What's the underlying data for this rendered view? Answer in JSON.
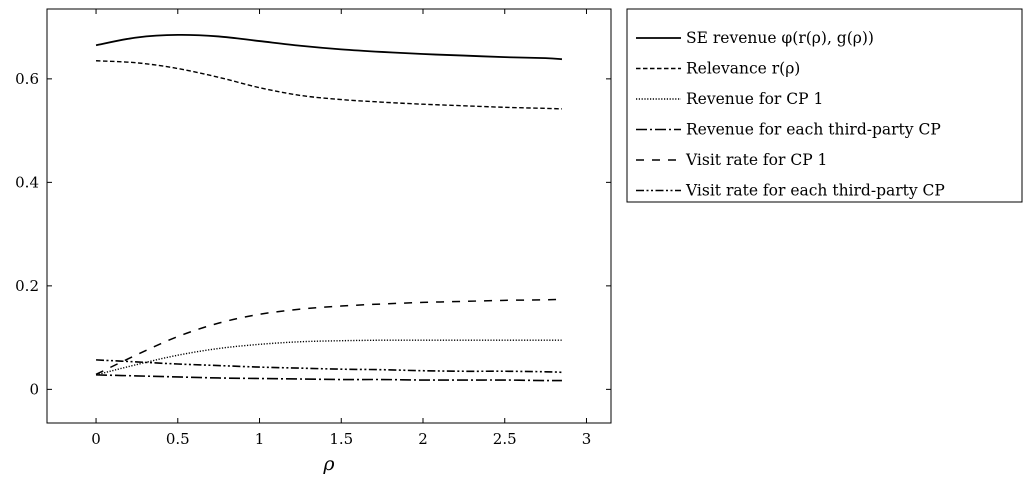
{
  "chart_data": {
    "type": "line",
    "xlabel": "ρ",
    "ylabel": "",
    "title": "",
    "xlim": [
      -0.3,
      3.15
    ],
    "ylim": [
      -0.065,
      0.735
    ],
    "xticks": [
      0,
      0.5,
      1,
      1.5,
      2,
      2.5,
      3
    ],
    "xtick_labels": [
      "0",
      "0.5",
      "1",
      "1.5",
      "2",
      "2.5",
      "3"
    ],
    "yticks": [
      0,
      0.2,
      0.4,
      0.6
    ],
    "ytick_labels": [
      "0",
      "0.2",
      "0.4",
      "0.6"
    ],
    "grid": false,
    "legend_position": "outside-right-top",
    "series": [
      {
        "name": "SE revenue φ(r(ρ), g(ρ))",
        "style": "solid",
        "x": [
          0,
          0.25,
          0.5,
          0.75,
          1,
          1.25,
          1.5,
          1.75,
          2,
          2.25,
          2.5,
          2.75,
          2.85
        ],
        "y": [
          0.665,
          0.68,
          0.685,
          0.682,
          0.673,
          0.664,
          0.657,
          0.652,
          0.648,
          0.645,
          0.642,
          0.64,
          0.638
        ]
      },
      {
        "name": "Relevance r(ρ)",
        "style": "dashed",
        "x": [
          0,
          0.25,
          0.5,
          0.75,
          1,
          1.25,
          1.5,
          1.75,
          2,
          2.25,
          2.5,
          2.75,
          2.85
        ],
        "y": [
          0.635,
          0.631,
          0.62,
          0.603,
          0.583,
          0.568,
          0.56,
          0.555,
          0.551,
          0.548,
          0.545,
          0.543,
          0.542
        ]
      },
      {
        "name": "Revenue for CP 1",
        "style": "dotted",
        "x": [
          0,
          0.25,
          0.5,
          0.75,
          1,
          1.25,
          1.5,
          1.75,
          2,
          2.25,
          2.5,
          2.75,
          2.85
        ],
        "y": [
          0.028,
          0.048,
          0.066,
          0.079,
          0.087,
          0.092,
          0.094,
          0.095,
          0.095,
          0.095,
          0.095,
          0.095,
          0.095
        ]
      },
      {
        "name": "Revenue for each third-party CP",
        "style": "longdash-dot",
        "x": [
          0,
          0.25,
          0.5,
          0.75,
          1,
          1.25,
          1.5,
          1.75,
          2,
          2.25,
          2.5,
          2.75,
          2.85
        ],
        "y": [
          0.028,
          0.026,
          0.024,
          0.022,
          0.021,
          0.02,
          0.019,
          0.019,
          0.018,
          0.018,
          0.018,
          0.017,
          0.017
        ]
      },
      {
        "name": "Visit rate for CP 1",
        "style": "loose-dashed",
        "x": [
          0,
          0.25,
          0.5,
          0.75,
          1,
          1.25,
          1.5,
          1.75,
          2,
          2.25,
          2.5,
          2.75,
          2.85
        ],
        "y": [
          0.029,
          0.067,
          0.102,
          0.128,
          0.145,
          0.155,
          0.161,
          0.165,
          0.168,
          0.17,
          0.172,
          0.173,
          0.174
        ]
      },
      {
        "name": "Visit rate for each third-party CP",
        "style": "dash-dot-dot",
        "x": [
          0,
          0.25,
          0.5,
          0.75,
          1,
          1.25,
          1.5,
          1.75,
          2,
          2.25,
          2.5,
          2.75,
          2.85
        ],
        "y": [
          0.057,
          0.053,
          0.049,
          0.046,
          0.043,
          0.041,
          0.039,
          0.038,
          0.036,
          0.035,
          0.035,
          0.034,
          0.033
        ]
      }
    ]
  }
}
